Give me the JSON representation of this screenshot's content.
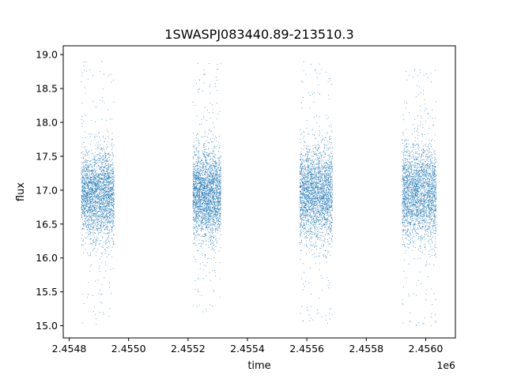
{
  "chart_data": {
    "type": "scatter",
    "title": "1SWASPJ083440.89-213510.3",
    "xlabel": "time",
    "ylabel": "flux",
    "x_offset_label": "1e6",
    "x_tick_labels": [
      "2.4548",
      "2.4550",
      "2.4552",
      "2.4554",
      "2.4556",
      "2.4558",
      "2.4560"
    ],
    "x_ticks": [
      2454800,
      2455000,
      2455200,
      2455400,
      2455600,
      2455800,
      2456000
    ],
    "y_tick_labels": [
      "15.0",
      "15.5",
      "16.0",
      "16.5",
      "17.0",
      "17.5",
      "18.0",
      "18.5",
      "19.0"
    ],
    "y_ticks": [
      15.0,
      15.5,
      16.0,
      16.5,
      17.0,
      17.5,
      18.0,
      18.5,
      19.0
    ],
    "xlim": [
      2454780,
      2456100
    ],
    "ylim": [
      14.82,
      19.13
    ],
    "grid": false,
    "marker_color": "#1f77b4",
    "series": [
      {
        "observing_seasons": [
          {
            "x_range": [
              2454840,
              2454950
            ],
            "y_center": 16.95,
            "y_typical_spread": 0.65,
            "y_min": 15.02,
            "y_max": 18.95
          },
          {
            "x_range": [
              2455215,
              2455310
            ],
            "y_center": 16.95,
            "y_typical_spread": 0.65,
            "y_min": 15.18,
            "y_max": 18.9
          },
          {
            "x_range": [
              2455575,
              2455685
            ],
            "y_center": 16.95,
            "y_typical_spread": 0.7,
            "y_min": 15.02,
            "y_max": 18.93
          },
          {
            "x_range": [
              2455920,
              2456035
            ],
            "y_center": 16.95,
            "y_typical_spread": 0.7,
            "y_min": 15.0,
            "y_max": 18.8
          }
        ]
      }
    ]
  }
}
